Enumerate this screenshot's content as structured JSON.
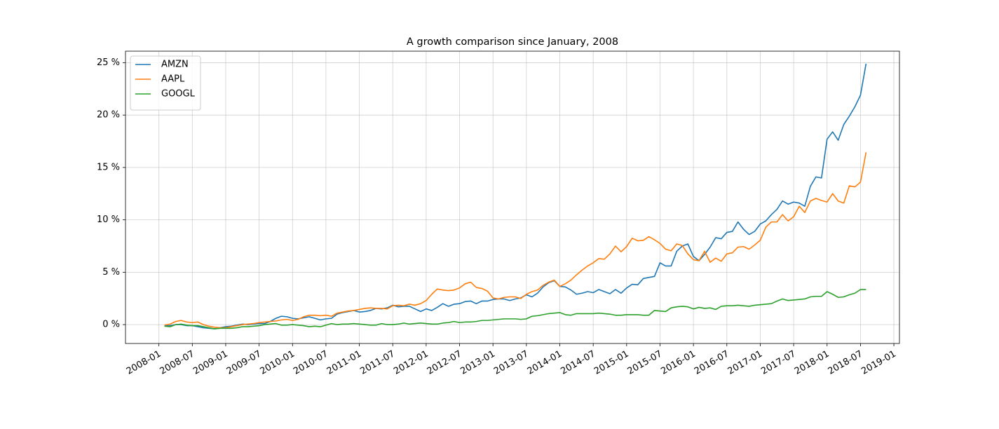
{
  "chart_data": {
    "type": "line",
    "title": "A growth comparison since January, 2008",
    "x": [
      "2008-02",
      "2008-03",
      "2008-04",
      "2008-05",
      "2008-06",
      "2008-07",
      "2008-08",
      "2008-09",
      "2008-10",
      "2008-11",
      "2008-12",
      "2009-01",
      "2009-02",
      "2009-03",
      "2009-04",
      "2009-05",
      "2009-06",
      "2009-07",
      "2009-08",
      "2009-09",
      "2009-10",
      "2009-11",
      "2009-12",
      "2010-01",
      "2010-02",
      "2010-03",
      "2010-04",
      "2010-05",
      "2010-06",
      "2010-07",
      "2010-08",
      "2010-09",
      "2010-10",
      "2010-11",
      "2010-12",
      "2011-01",
      "2011-02",
      "2011-03",
      "2011-04",
      "2011-05",
      "2011-06",
      "2011-07",
      "2011-08",
      "2011-09",
      "2011-10",
      "2011-11",
      "2011-12",
      "2012-01",
      "2012-02",
      "2012-03",
      "2012-04",
      "2012-05",
      "2012-06",
      "2012-07",
      "2012-08",
      "2012-09",
      "2012-10",
      "2012-11",
      "2012-12",
      "2013-01",
      "2013-02",
      "2013-03",
      "2013-04",
      "2013-05",
      "2013-06",
      "2013-07",
      "2013-08",
      "2013-09",
      "2013-10",
      "2013-11",
      "2013-12",
      "2014-01",
      "2014-02",
      "2014-03",
      "2014-04",
      "2014-05",
      "2014-06",
      "2014-07",
      "2014-08",
      "2014-09",
      "2014-10",
      "2014-11",
      "2014-12",
      "2015-01",
      "2015-02",
      "2015-03",
      "2015-04",
      "2015-05",
      "2015-06",
      "2015-07",
      "2015-08",
      "2015-09",
      "2015-10",
      "2015-11",
      "2015-12",
      "2016-01",
      "2016-02",
      "2016-03",
      "2016-04",
      "2016-05",
      "2016-06",
      "2016-07",
      "2016-08",
      "2016-09",
      "2016-10",
      "2016-11",
      "2016-12",
      "2017-01",
      "2017-02",
      "2017-03",
      "2017-04",
      "2017-05",
      "2017-06",
      "2017-07",
      "2017-08",
      "2017-09",
      "2017-10",
      "2017-11",
      "2017-12",
      "2018-01",
      "2018-02",
      "2018-03",
      "2018-04",
      "2018-05",
      "2018-06",
      "2018-07",
      "2018-08"
    ],
    "series": [
      {
        "name": "AMZN",
        "color": "#1f77b4",
        "values": [
          -0.1,
          -0.1,
          0.0,
          0.0,
          -0.1,
          -0.1,
          -0.2,
          -0.3,
          -0.35,
          -0.4,
          -0.3,
          -0.2,
          -0.15,
          -0.05,
          0.05,
          0.0,
          0.05,
          0.1,
          0.1,
          0.3,
          0.6,
          0.8,
          0.75,
          0.6,
          0.55,
          0.65,
          0.75,
          0.6,
          0.45,
          0.55,
          0.6,
          1.0,
          1.15,
          1.25,
          1.35,
          1.2,
          1.25,
          1.35,
          1.55,
          1.5,
          1.6,
          1.85,
          1.7,
          1.75,
          1.75,
          1.5,
          1.25,
          1.5,
          1.35,
          1.65,
          2.0,
          1.75,
          1.95,
          2.0,
          2.2,
          2.25,
          2.0,
          2.25,
          2.25,
          2.4,
          2.45,
          2.45,
          2.3,
          2.45,
          2.55,
          2.85,
          2.65,
          3.0,
          3.6,
          4.0,
          4.2,
          3.65,
          3.6,
          3.3,
          2.9,
          3.0,
          3.15,
          3.05,
          3.35,
          3.15,
          2.95,
          3.35,
          3.0,
          3.5,
          3.85,
          3.8,
          4.4,
          4.5,
          4.6,
          5.9,
          5.6,
          5.6,
          7.0,
          7.5,
          7.7,
          6.5,
          6.1,
          6.7,
          7.4,
          8.3,
          8.2,
          8.8,
          8.9,
          9.8,
          9.1,
          8.6,
          8.9,
          9.6,
          9.9,
          10.5,
          11.0,
          11.8,
          11.5,
          11.7,
          11.6,
          11.3,
          13.2,
          14.1,
          14.0,
          17.7,
          18.4,
          17.6,
          19.1,
          19.9,
          20.8,
          21.9,
          24.9
        ]
      },
      {
        "name": "AAPL",
        "color": "#ff7f0e",
        "values": [
          -0.05,
          0.05,
          0.3,
          0.4,
          0.25,
          0.2,
          0.25,
          0.0,
          -0.15,
          -0.25,
          -0.3,
          -0.3,
          -0.2,
          -0.1,
          0.0,
          0.05,
          0.1,
          0.2,
          0.25,
          0.3,
          0.35,
          0.45,
          0.5,
          0.4,
          0.5,
          0.75,
          0.9,
          0.9,
          0.85,
          0.9,
          0.8,
          1.1,
          1.2,
          1.3,
          1.35,
          1.45,
          1.55,
          1.6,
          1.55,
          1.55,
          1.5,
          1.8,
          1.85,
          1.8,
          1.95,
          1.85,
          2.0,
          2.3,
          2.9,
          3.4,
          3.3,
          3.25,
          3.3,
          3.5,
          3.9,
          4.05,
          3.55,
          3.45,
          3.2,
          2.55,
          2.45,
          2.6,
          2.65,
          2.65,
          2.5,
          2.9,
          3.15,
          3.3,
          3.75,
          4.05,
          4.25,
          3.65,
          3.9,
          4.25,
          4.75,
          5.2,
          5.6,
          5.9,
          6.3,
          6.25,
          6.75,
          7.5,
          6.95,
          7.45,
          8.25,
          8.0,
          8.05,
          8.4,
          8.1,
          7.75,
          7.2,
          7.05,
          7.7,
          7.55,
          6.75,
          6.2,
          6.1,
          7.0,
          5.95,
          6.35,
          6.05,
          6.75,
          6.85,
          7.4,
          7.45,
          7.2,
          7.6,
          8.05,
          9.3,
          9.8,
          9.8,
          10.5,
          9.9,
          10.3,
          11.3,
          10.7,
          11.8,
          12.05,
          11.85,
          11.7,
          12.5,
          11.8,
          11.6,
          13.25,
          13.15,
          13.6,
          16.45
        ]
      },
      {
        "name": "GOOGL",
        "color": "#2ca02c",
        "values": [
          -0.15,
          -0.2,
          0.0,
          0.05,
          -0.05,
          -0.1,
          -0.1,
          -0.2,
          -0.3,
          -0.4,
          -0.35,
          -0.35,
          -0.35,
          -0.3,
          -0.2,
          -0.2,
          -0.15,
          -0.1,
          0.0,
          0.05,
          0.1,
          -0.05,
          -0.05,
          0.0,
          -0.05,
          -0.1,
          -0.2,
          -0.15,
          -0.2,
          -0.05,
          0.1,
          0.0,
          0.05,
          0.05,
          0.1,
          0.05,
          0.0,
          -0.05,
          -0.05,
          0.1,
          0.0,
          0.0,
          0.05,
          0.15,
          0.05,
          0.1,
          0.15,
          0.1,
          0.05,
          0.05,
          0.15,
          0.2,
          0.3,
          0.2,
          0.25,
          0.25,
          0.3,
          0.4,
          0.4,
          0.45,
          0.5,
          0.55,
          0.55,
          0.55,
          0.5,
          0.55,
          0.8,
          0.85,
          0.95,
          1.05,
          1.1,
          1.15,
          0.95,
          0.9,
          1.05,
          1.05,
          1.05,
          1.05,
          1.1,
          1.05,
          1.0,
          0.9,
          0.9,
          0.95,
          0.95,
          0.95,
          0.9,
          0.9,
          1.35,
          1.3,
          1.25,
          1.6,
          1.7,
          1.75,
          1.7,
          1.5,
          1.65,
          1.55,
          1.6,
          1.45,
          1.75,
          1.8,
          1.8,
          1.85,
          1.8,
          1.75,
          1.85,
          1.9,
          1.95,
          2.0,
          2.25,
          2.45,
          2.3,
          2.35,
          2.4,
          2.45,
          2.65,
          2.7,
          2.7,
          3.15,
          2.9,
          2.6,
          2.65,
          2.85,
          3.0,
          3.35,
          3.35
        ]
      }
    ],
    "xlim": [
      "2007-07",
      "2019-02"
    ],
    "xticks": [
      "2008-01",
      "2008-07",
      "2009-01",
      "2009-07",
      "2010-01",
      "2010-07",
      "2011-01",
      "2011-07",
      "2012-01",
      "2012-07",
      "2013-01",
      "2013-07",
      "2014-01",
      "2014-07",
      "2015-01",
      "2015-07",
      "2016-01",
      "2016-07",
      "2017-01",
      "2017-07",
      "2018-01",
      "2018-07",
      "2019-01"
    ],
    "ylim": [
      -1.8,
      26.1
    ],
    "yticks": [
      {
        "value": 0,
        "label": "0 %"
      },
      {
        "value": 5,
        "label": "5 %"
      },
      {
        "value": 10,
        "label": "10 %"
      },
      {
        "value": 15,
        "label": "15 %"
      },
      {
        "value": 20,
        "label": "20 %"
      },
      {
        "value": 25,
        "label": "25 %"
      }
    ],
    "grid": true,
    "legend": "upper-left"
  }
}
